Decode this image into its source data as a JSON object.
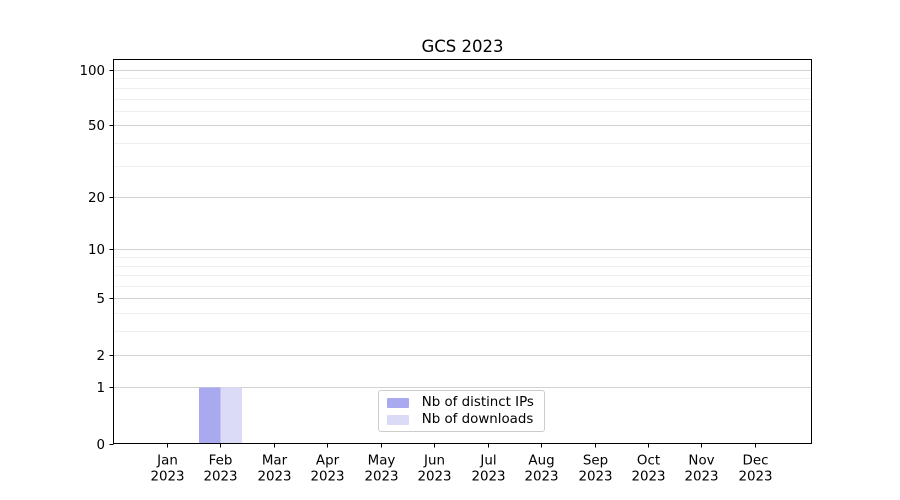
{
  "chart_data": {
    "type": "bar",
    "title": "GCS 2023",
    "categories": [
      "Jan",
      "Feb",
      "Mar",
      "Apr",
      "May",
      "Jun",
      "Jul",
      "Aug",
      "Sep",
      "Oct",
      "Nov",
      "Dec"
    ],
    "year_label": "2023",
    "series": [
      {
        "name": "Nb of distinct IPs",
        "color": "#a9a9f0",
        "values": [
          0,
          1,
          0,
          0,
          0,
          0,
          0,
          0,
          0,
          0,
          0,
          0
        ]
      },
      {
        "name": "Nb of downloads",
        "color": "#dbdbf7",
        "values": [
          0,
          1,
          0,
          0,
          0,
          0,
          0,
          0,
          0,
          0,
          0,
          0
        ]
      }
    ],
    "y_axis": {
      "scale": "log1p",
      "major_ticks": [
        0,
        1,
        2,
        5,
        10,
        20,
        50,
        100
      ],
      "minor_ticks": [
        3,
        4,
        6,
        7,
        8,
        9,
        30,
        40,
        60,
        70,
        80,
        90
      ],
      "min": 0,
      "max": 114
    },
    "legend_position": "lower center",
    "grid": "on",
    "colors": {
      "major_grid": "#d2d2d2",
      "minor_grid": "#efefef",
      "axis": "#000000",
      "background": "#ffffff"
    }
  }
}
